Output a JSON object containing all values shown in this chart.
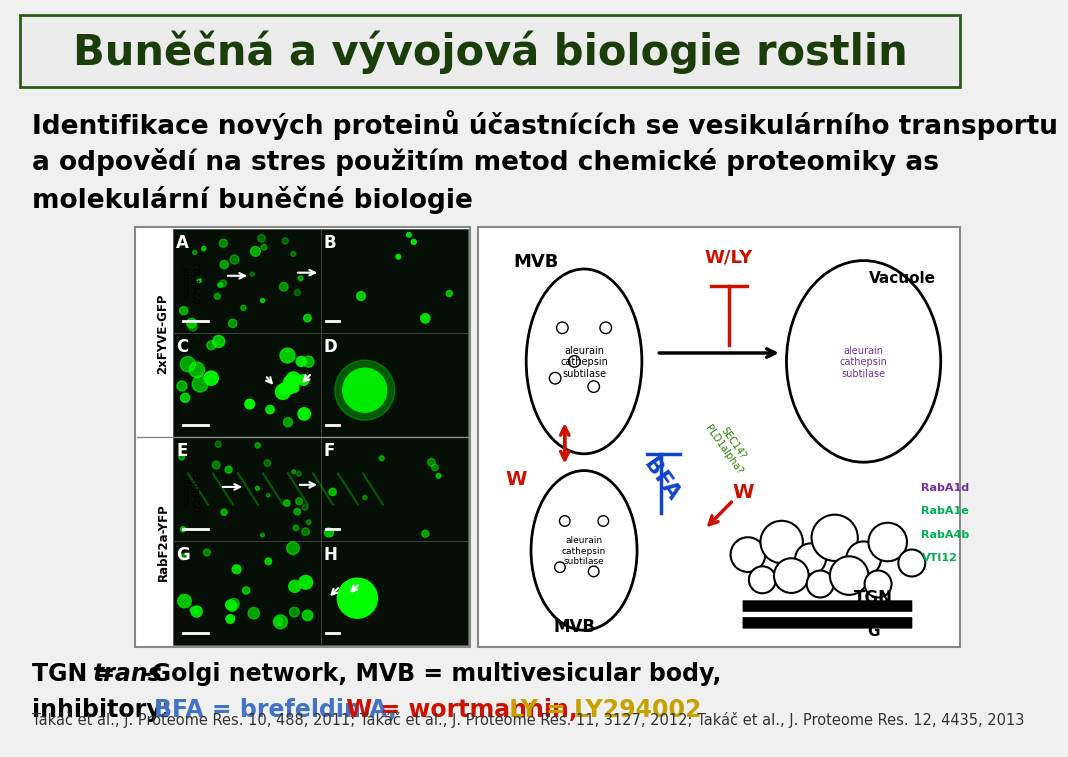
{
  "title": "Buněčná a vývojová biologie rostlin",
  "title_bg": "#ececec",
  "title_border": "#2d5a1b",
  "title_color": "#1a3d0a",
  "title_fontsize": 30,
  "body_line1": "Identifikace nových proteinů účastnících se vesikulárního transportu",
  "body_line2": "a odpovědí na stres použitím metod chemické proteomiky as",
  "body_line3": "molekulární buněčné biologie",
  "body_fontsize": 19,
  "body_color": "#000000",
  "annot_fontsize": 17,
  "citation": "Takáč et al., J. Proteome Res. 10, 488, 2011; Takáč et al., J. Proteome Res. 11, 3127, 2012; Takáč et al., J. Proteome Res. 12, 4435, 2013",
  "citation_fontsize": 10.5,
  "citation_color": "#333333",
  "bg_color": "#f0f0f0",
  "panel_border": "#888888",
  "micro_bg": "#050f05",
  "diag_bg": "#ffffff",
  "label_colors": {
    "RabA1d": "#7030a0",
    "RabA1e": "#00b050",
    "RabA4b": "#00b050",
    "VTI12": "#00b050"
  },
  "red": "#cc1100",
  "blue": "#3355cc",
  "green_sec": "#2a8000",
  "black": "#000000",
  "wly_color": "#cc1100",
  "bfa_color": "#1144cc",
  "w_color": "#cc1100"
}
